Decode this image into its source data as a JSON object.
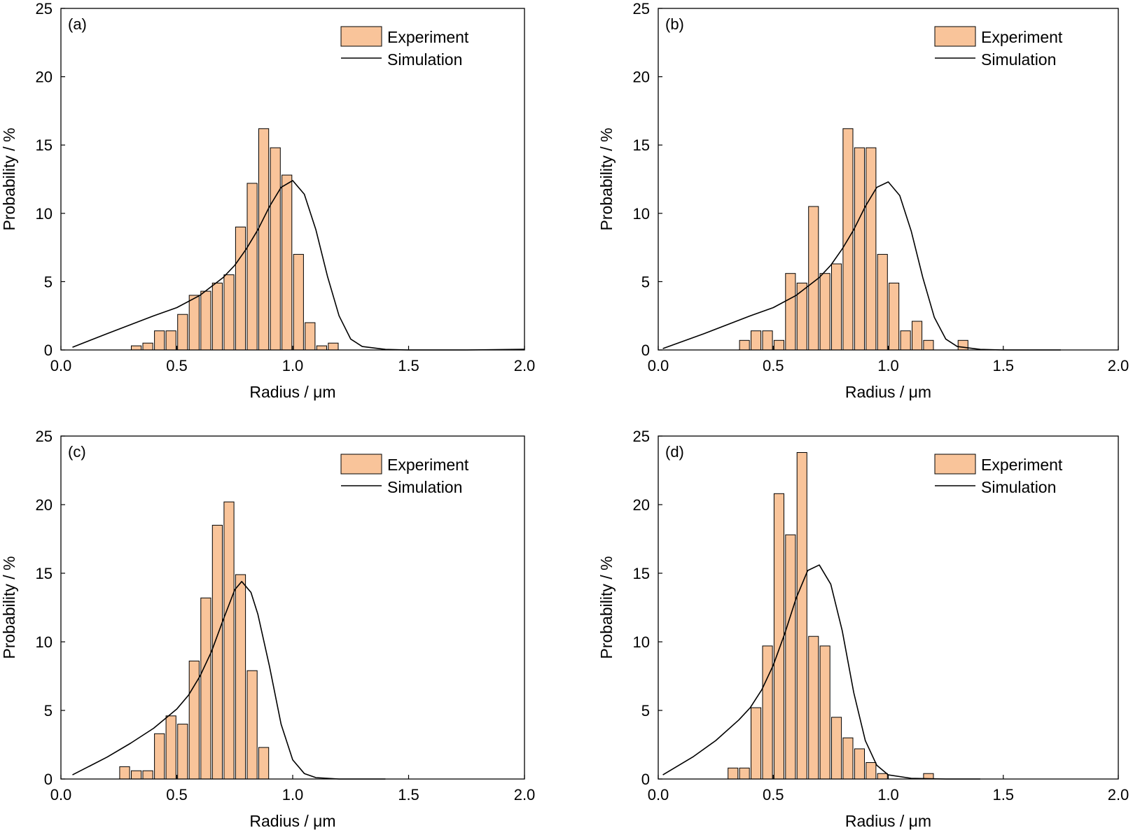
{
  "colors": {
    "bar_fill": "#f9c49a",
    "bar_stroke": "#000000",
    "line": "#000000",
    "axis": "#000000"
  },
  "chart_data": [
    {
      "type": "bar",
      "panel_label": "(a)",
      "xlabel": "Radius / μm",
      "ylabel": "Probability / %",
      "xlim": [
        0,
        2.0
      ],
      "ylim": [
        0,
        25
      ],
      "xticks": [
        "0.0",
        "0.5",
        "1.0",
        "1.5",
        "2.0"
      ],
      "yticks": [
        "0",
        "5",
        "10",
        "15",
        "20",
        "25"
      ],
      "legend": {
        "position": "top-right",
        "entries": [
          "Experiment",
          "Simulation"
        ]
      },
      "bar_width": 0.05,
      "series": [
        {
          "name": "Experiment",
          "kind": "bar",
          "x": [
            0.325,
            0.375,
            0.425,
            0.475,
            0.525,
            0.575,
            0.625,
            0.675,
            0.725,
            0.775,
            0.825,
            0.875,
            0.925,
            0.975,
            1.025,
            1.075,
            1.125,
            1.175,
            1.225,
            1.275
          ],
          "values": [
            0.3,
            0.5,
            1.4,
            1.4,
            2.6,
            4.0,
            4.3,
            4.9,
            5.5,
            9.0,
            12.2,
            16.2,
            14.8,
            12.8,
            7.0,
            2.0,
            0.3,
            0.5,
            0,
            0
          ]
        },
        {
          "name": "Simulation",
          "kind": "line",
          "x": [
            0.05,
            0.2,
            0.4,
            0.5,
            0.6,
            0.7,
            0.75,
            0.8,
            0.85,
            0.9,
            0.95,
            1.0,
            1.05,
            1.1,
            1.15,
            1.2,
            1.25,
            1.3,
            1.4,
            1.5,
            1.75,
            2.0
          ],
          "y": [
            0.2,
            1.2,
            2.5,
            3.1,
            4.0,
            5.3,
            6.2,
            7.4,
            8.8,
            10.5,
            11.9,
            12.4,
            11.4,
            8.8,
            5.4,
            2.5,
            0.8,
            0.25,
            0.04,
            0,
            0,
            0.05
          ]
        }
      ]
    },
    {
      "type": "bar",
      "panel_label": "(b)",
      "xlabel": "Radius / μm",
      "ylabel": "Probability / %",
      "xlim": [
        0,
        2.0
      ],
      "ylim": [
        0,
        25
      ],
      "xticks": [
        "0.0",
        "0.5",
        "1.0",
        "1.5",
        "2.0"
      ],
      "yticks": [
        "0",
        "5",
        "10",
        "15",
        "20",
        "25"
      ],
      "legend": {
        "position": "top-right",
        "entries": [
          "Experiment",
          "Simulation"
        ]
      },
      "bar_width": 0.05,
      "series": [
        {
          "name": "Experiment",
          "kind": "bar",
          "x": [
            0.375,
            0.425,
            0.475,
            0.525,
            0.575,
            0.625,
            0.675,
            0.725,
            0.775,
            0.825,
            0.875,
            0.925,
            0.975,
            1.025,
            1.075,
            1.125,
            1.175,
            1.225,
            1.275,
            1.325,
            1.375
          ],
          "values": [
            0.7,
            1.4,
            1.4,
            0.7,
            5.6,
            4.9,
            10.5,
            5.6,
            6.3,
            16.2,
            14.8,
            14.8,
            7.0,
            4.9,
            1.4,
            2.1,
            0.7,
            0,
            0,
            0.7,
            0
          ]
        },
        {
          "name": "Simulation",
          "kind": "line",
          "x": [
            0.02,
            0.2,
            0.4,
            0.5,
            0.6,
            0.7,
            0.75,
            0.8,
            0.85,
            0.9,
            0.95,
            1.0,
            1.05,
            1.1,
            1.15,
            1.2,
            1.25,
            1.3,
            1.4,
            1.5,
            1.75
          ],
          "y": [
            0.1,
            1.2,
            2.5,
            3.1,
            4.0,
            5.3,
            6.2,
            7.4,
            8.8,
            10.5,
            11.9,
            12.3,
            11.3,
            8.7,
            5.3,
            2.4,
            0.8,
            0.25,
            0.04,
            0,
            0
          ]
        }
      ]
    },
    {
      "type": "bar",
      "panel_label": "(c)",
      "xlabel": "Radius / μm",
      "ylabel": "Probability / %",
      "xlim": [
        0,
        2.0
      ],
      "ylim": [
        0,
        25
      ],
      "xticks": [
        "0.0",
        "0.5",
        "1.0",
        "1.5",
        "2.0"
      ],
      "yticks": [
        "0",
        "5",
        "10",
        "15",
        "20",
        "25"
      ],
      "legend": {
        "position": "top-right",
        "entries": [
          "Experiment",
          "Simulation"
        ]
      },
      "bar_width": 0.05,
      "series": [
        {
          "name": "Experiment",
          "kind": "bar",
          "x": [
            0.275,
            0.325,
            0.375,
            0.425,
            0.475,
            0.525,
            0.575,
            0.625,
            0.675,
            0.725,
            0.775,
            0.825,
            0.875,
            0.925
          ],
          "values": [
            0.9,
            0.6,
            0.6,
            3.3,
            4.6,
            4.0,
            8.6,
            13.2,
            18.5,
            20.2,
            14.9,
            7.9,
            2.3,
            0
          ]
        },
        {
          "name": "Simulation",
          "kind": "line",
          "x": [
            0.05,
            0.2,
            0.3,
            0.4,
            0.5,
            0.55,
            0.6,
            0.65,
            0.7,
            0.75,
            0.78,
            0.82,
            0.85,
            0.9,
            0.95,
            1.0,
            1.05,
            1.1,
            1.2,
            1.4
          ],
          "y": [
            0.3,
            1.6,
            2.6,
            3.7,
            5.1,
            6.1,
            7.5,
            9.3,
            11.6,
            13.8,
            14.4,
            13.6,
            12.0,
            8.2,
            4.0,
            1.4,
            0.4,
            0.1,
            0,
            0
          ]
        }
      ]
    },
    {
      "type": "bar",
      "panel_label": "(d)",
      "xlabel": "Radius / μm",
      "ylabel": "Probability / %",
      "xlim": [
        0,
        2.0
      ],
      "ylim": [
        0,
        25
      ],
      "xticks": [
        "0.0",
        "0.5",
        "1.0",
        "1.5",
        "2.0"
      ],
      "yticks": [
        "0",
        "5",
        "10",
        "15",
        "20",
        "25"
      ],
      "legend": {
        "position": "top-right",
        "entries": [
          "Experiment",
          "Simulation"
        ]
      },
      "bar_width": 0.05,
      "series": [
        {
          "name": "Experiment",
          "kind": "bar",
          "x": [
            0.325,
            0.375,
            0.425,
            0.475,
            0.525,
            0.575,
            0.625,
            0.675,
            0.725,
            0.775,
            0.825,
            0.875,
            0.925,
            0.975,
            1.025,
            1.075,
            1.125,
            1.175
          ],
          "values": [
            0.8,
            0.8,
            5.2,
            9.7,
            20.8,
            17.8,
            23.8,
            10.4,
            9.7,
            4.5,
            3.0,
            2.2,
            1.2,
            0.4,
            0,
            0,
            0,
            0.4
          ]
        },
        {
          "name": "Simulation",
          "kind": "line",
          "x": [
            0.02,
            0.15,
            0.25,
            0.35,
            0.4,
            0.45,
            0.5,
            0.55,
            0.6,
            0.65,
            0.7,
            0.75,
            0.8,
            0.85,
            0.9,
            0.95,
            1.0,
            1.1,
            1.25,
            1.4
          ],
          "y": [
            0.3,
            1.6,
            2.8,
            4.3,
            5.2,
            6.5,
            8.3,
            10.6,
            13.2,
            15.2,
            15.6,
            14.2,
            10.8,
            6.3,
            2.8,
            1.0,
            0.3,
            0.05,
            0,
            0
          ]
        }
      ]
    }
  ]
}
